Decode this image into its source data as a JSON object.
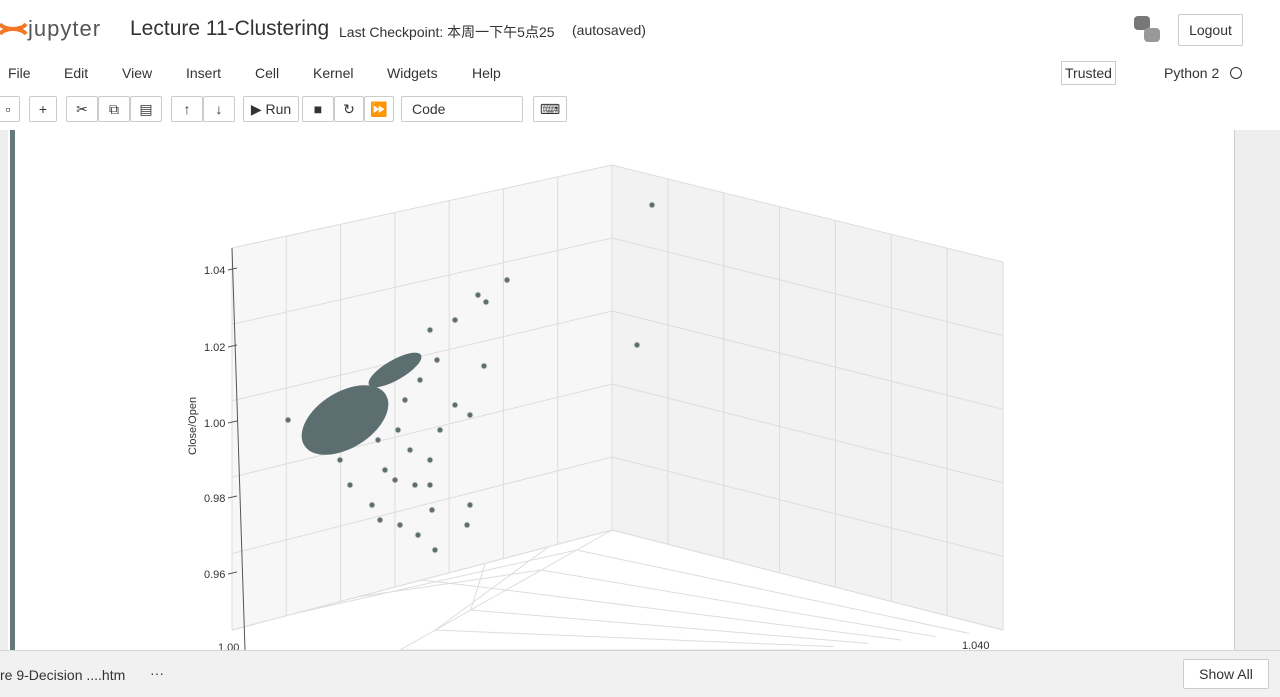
{
  "header": {
    "logo": "jupyter",
    "title": "Lecture 11-Clustering",
    "checkpoint": "Last Checkpoint: 本周一下午5点25",
    "autosaved": "(autosaved)",
    "logout": "Logout"
  },
  "menu": {
    "items": [
      "File",
      "Edit",
      "View",
      "Insert",
      "Cell",
      "Kernel",
      "Widgets",
      "Help"
    ],
    "trusted": "Trusted",
    "kernel": "Python 2"
  },
  "toolbar": {
    "run": "Run",
    "cell_type": "Code"
  },
  "plot": {
    "z_ticks": [
      "1.04",
      "1.02",
      "1.00",
      "0.98",
      "0.96"
    ],
    "z_label": "Close/Open",
    "x_tick": "1.00",
    "y_tick": "1.040"
  },
  "downloads": {
    "file": "re 9-Decision ....htm",
    "more": "···",
    "show_all": "Show All"
  }
}
